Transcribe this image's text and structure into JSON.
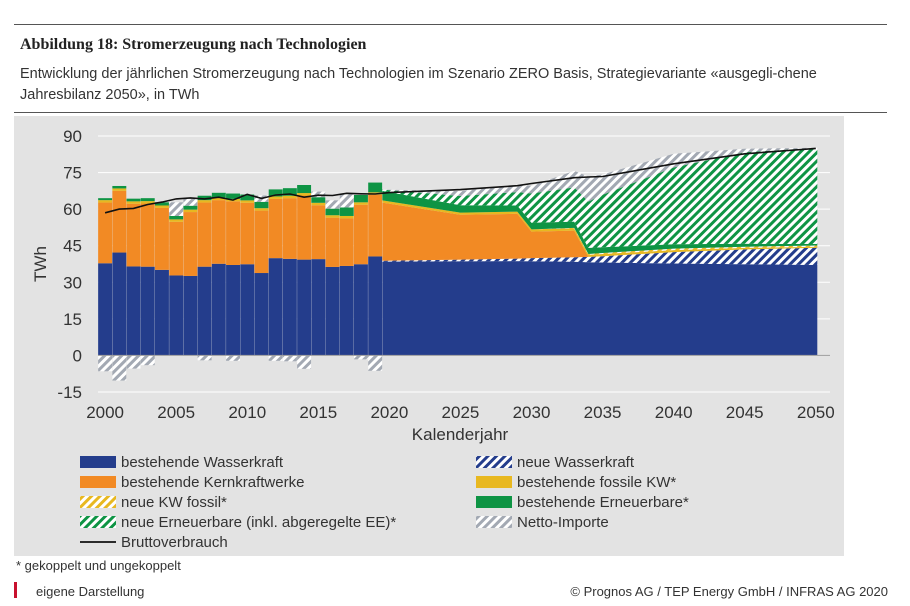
{
  "figure": {
    "title": "Abbildung 18: Stromerzeugung nach Technologien",
    "subtitle": "Entwicklung der jährlichen Stromerzeugung nach Technologien im Szenario ZERO Basis, Strategievariante «ausgegli-chene Jahresbilanz 2050», in TWh",
    "footnote": "* gekoppelt und ungekoppelt",
    "source": "eigene Darstellung",
    "copyright": "© Prognos AG / TEP Energy GmbH / INFRAS AG 2020"
  },
  "colors": {
    "wasserkraft": "#243d8c",
    "kernkraft": "#f28a24",
    "fossil": "#e8b820",
    "erneuerbare": "#0e9444",
    "importe": "#a3a9b3",
    "brutto": "#111111",
    "background": "#e3e3e3"
  },
  "chart_data": {
    "type": "area",
    "xlabel": "Kalenderjahr",
    "ylabel": "TWh",
    "xlim": [
      1999.5,
      2051
    ],
    "ylim": [
      -15,
      90
    ],
    "x_ticks": [
      "2000",
      "2005",
      "2010",
      "2015",
      "2020",
      "2025",
      "2030",
      "2035",
      "2040",
      "2045",
      "2050"
    ],
    "y_ticks": [
      "90",
      "75",
      "60",
      "45",
      "30",
      "15",
      "0",
      "-15"
    ],
    "grid": true,
    "legend_position": "bottom",
    "years_historic": [
      2000,
      2001,
      2002,
      2003,
      2004,
      2005,
      2006,
      2007,
      2008,
      2009,
      2010,
      2011,
      2012,
      2013,
      2014,
      2015,
      2016,
      2017,
      2018,
      2019
    ],
    "historic": {
      "bestehende Wasserkraft": [
        37.8,
        42.2,
        36.5,
        36.4,
        35.1,
        32.8,
        32.6,
        36.4,
        37.6,
        37.1,
        37.4,
        33.8,
        39.9,
        39.6,
        39.3,
        39.5,
        36.3,
        36.7,
        37.4,
        40.6
      ],
      "bestehende Kernkraftwerke": [
        24.9,
        25.3,
        25.7,
        25.9,
        25.4,
        22.0,
        26.2,
        26.3,
        26.1,
        26.1,
        25.2,
        25.6,
        24.3,
        24.9,
        26.3,
        22.1,
        20.2,
        19.5,
        24.4,
        25.3
      ],
      "bestehende fossile KW*": [
        1.0,
        1.0,
        1.0,
        1.0,
        1.0,
        1.0,
        1.0,
        1.0,
        1.0,
        1.0,
        1.0,
        1.0,
        1.0,
        1.0,
        1.0,
        1.0,
        1.0,
        1.0,
        1.0,
        1.0
      ],
      "bestehende Erneuerbare*": [
        0.8,
        1.0,
        1.1,
        1.2,
        1.3,
        1.4,
        1.6,
        1.8,
        2.0,
        2.2,
        2.4,
        2.6,
        2.9,
        3.1,
        3.3,
        2.3,
        2.7,
        3.5,
        3.0,
        4.0
      ],
      "Netto-Importe": [
        -6.5,
        -10.3,
        -5.4,
        -4.0,
        0.0,
        5.6,
        2.8,
        -2.0,
        0.0,
        -2.2,
        0.0,
        2.6,
        -2.2,
        -2.4,
        -5.5,
        2.3,
        3.4,
        5.5,
        -1.6,
        -6.3
      ],
      "Bruttoverbrauch": [
        58.5,
        60.0,
        60.3,
        61.9,
        62.9,
        64.2,
        64.6,
        64.2,
        64.9,
        63.7,
        66.1,
        64.4,
        65.8,
        66.2,
        64.9,
        65.7,
        65.6,
        66.5,
        66.3,
        66.2
      ]
    },
    "years_scenario": [
      2020,
      2025,
      2029,
      2030,
      2033,
      2034,
      2035,
      2040,
      2045,
      2050
    ],
    "scenario": {
      "bestehende Wasserkraft": [
        38.5,
        38.6,
        38.7,
        38.6,
        38.4,
        38.2,
        38.1,
        37.7,
        37.4,
        37.1
      ],
      "neue Wasserkraft": [
        0.3,
        0.7,
        1.0,
        1.3,
        1.9,
        2.2,
        2.6,
        4.7,
        6.1,
        7.1
      ],
      "bestehende Kernkraftwerke": [
        23.9,
        18.4,
        18.4,
        10.9,
        10.9,
        0.0,
        0.0,
        0.0,
        0.0,
        0.0
      ],
      "bestehende fossile KW*": [
        0.9,
        0.9,
        0.9,
        0.9,
        0.9,
        0.9,
        0.9,
        0.8,
        0.6,
        0.4
      ],
      "neue KW fossil*": [
        0.0,
        0.0,
        0.0,
        0.0,
        0.2,
        0.3,
        0.4,
        0.6,
        0.5,
        0.5
      ],
      "bestehende Erneuerbare*": [
        3.9,
        3.0,
        2.5,
        2.7,
        2.6,
        2.5,
        2.4,
        1.8,
        1.2,
        0.6
      ],
      "neue Erneuerbare (inkl. abgeregelte EE)*": [
        0.5,
        3.8,
        5.5,
        12.0,
        14.0,
        19.0,
        21.5,
        31.5,
        37.5,
        39.5
      ],
      "Netto-Importe": [
        0.0,
        2.0,
        3.0,
        3.2,
        6.8,
        10.3,
        8.3,
        5.6,
        1.5,
        0.0
      ],
      "Bruttoverbrauch": [
        66.8,
        68.0,
        69.6,
        70.5,
        72.9,
        73.2,
        73.4,
        78.6,
        82.7,
        84.9
      ]
    },
    "legend": [
      {
        "label": "bestehende Wasserkraft",
        "color": "#243d8c",
        "pattern": "solid"
      },
      {
        "label": "neue Wasserkraft",
        "color": "#243d8c",
        "pattern": "hatch"
      },
      {
        "label": "bestehende Kernkraftwerke",
        "color": "#f28a24",
        "pattern": "solid"
      },
      {
        "label": "bestehende fossile KW*",
        "color": "#e8b820",
        "pattern": "solid"
      },
      {
        "label": "neue KW fossil*",
        "color": "#e8b820",
        "pattern": "hatch"
      },
      {
        "label": "bestehende Erneuerbare*",
        "color": "#0e9444",
        "pattern": "solid"
      },
      {
        "label": "neue Erneuerbare (inkl. abgeregelte EE)*",
        "color": "#0e9444",
        "pattern": "hatch"
      },
      {
        "label": "Netto-Importe",
        "color": "#a3a9b3",
        "pattern": "hatch"
      },
      {
        "label": "Bruttoverbrauch",
        "color": "#111111",
        "pattern": "line"
      }
    ]
  }
}
